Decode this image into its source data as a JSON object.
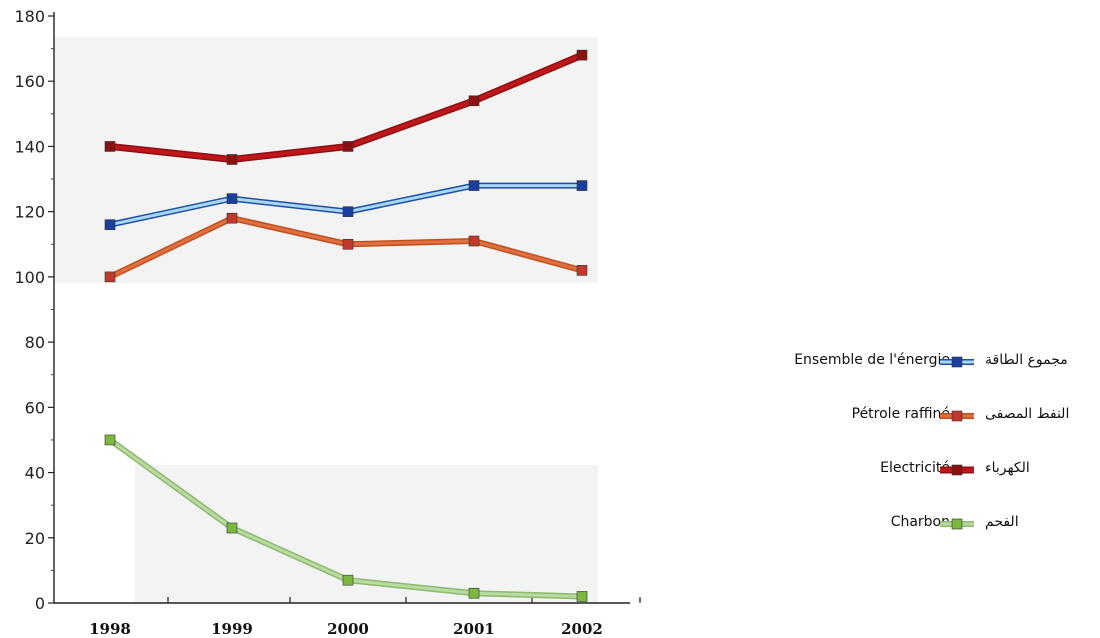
{
  "chart_data": {
    "type": "line",
    "x": [
      "1998",
      "1999",
      "2000",
      "2001",
      "2002"
    ],
    "ylim": [
      0,
      180
    ],
    "yticks": [
      "0",
      "20",
      "40",
      "60",
      "80",
      "100",
      "120",
      "140",
      "160",
      "180"
    ],
    "series": [
      {
        "name": "Ensemble de l'énergie",
        "name_ar": "مجموع الطاقة",
        "values": [
          116,
          124,
          120,
          128,
          128
        ],
        "line_color": "#a8d8ef",
        "marker_color": "#1a3fa0"
      },
      {
        "name": "Pétrole raffiné",
        "name_ar": "النفط المصفى",
        "values": [
          100,
          118,
          110,
          111,
          102
        ],
        "line_color": "#e07040",
        "marker_color": "#c0392b"
      },
      {
        "name": "Electricité",
        "name_ar": "الكهرباء",
        "values": [
          140,
          136,
          140,
          154,
          168
        ],
        "line_color": "#c0151b",
        "marker_color": "#8b1010"
      },
      {
        "name": "Charbon",
        "name_ar": "الفحم",
        "values": [
          50,
          23,
          7,
          3,
          2
        ],
        "line_color": "#b8dca0",
        "marker_color": "#7ab840"
      }
    ],
    "grid": false,
    "legend_position": "right"
  }
}
